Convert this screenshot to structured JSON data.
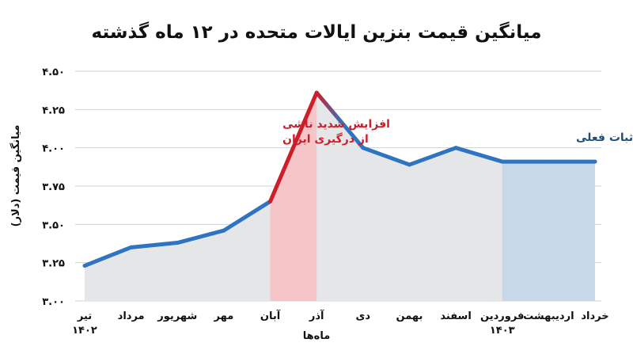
{
  "chart_data": {
    "type": "line",
    "title": "میانگین قیمت بنزین ایالات متحده در ۱۲ ماه گذشته",
    "xlabel": "ماه‌ها",
    "ylabel": "میانگین قیمت (دلار)",
    "ylim": [
      3.0,
      4.5
    ],
    "yticks": [
      3.0,
      3.25,
      3.5,
      3.75,
      4.0,
      4.25,
      4.5
    ],
    "ytick_labels": [
      "۳.۰۰",
      "۳.۲۵",
      "۳.۵۰",
      "۳.۷۵",
      "۴.۰۰",
      "۴.۲۵",
      "۴.۵۰"
    ],
    "grid": true,
    "categories": [
      "تیر",
      "مرداد",
      "شهریور",
      "مهر",
      "آبان",
      "آذر",
      "دی",
      "بهمن",
      "اسفند",
      "فروردین",
      "اردیبهشت",
      "خرداد"
    ],
    "year_labels": [
      {
        "index": 0,
        "text": "۱۴۰۲"
      },
      {
        "index": 9,
        "text": "۱۴۰۳"
      }
    ],
    "series": [
      {
        "values": [
          3.23,
          3.35,
          3.38,
          3.46,
          3.65,
          4.36,
          4.0,
          3.89,
          4.0,
          3.91,
          3.91,
          3.91
        ],
        "color": "#2f74c0",
        "highlight_color": "#cc1f2a",
        "fill_color": "#e5e6e8"
      }
    ],
    "annotations": [
      {
        "lines": [
          "افزایش شدید ناشی",
          "از درگیری ایران"
        ],
        "color": "#cc1f2a",
        "region": [
          4,
          5
        ],
        "region_color": "#f6c5c8"
      },
      {
        "lines": [
          "ثبات فعلی"
        ],
        "color": "#1e4f7a",
        "region": [
          9,
          11
        ],
        "region_color": "#c7d8e8"
      }
    ]
  }
}
